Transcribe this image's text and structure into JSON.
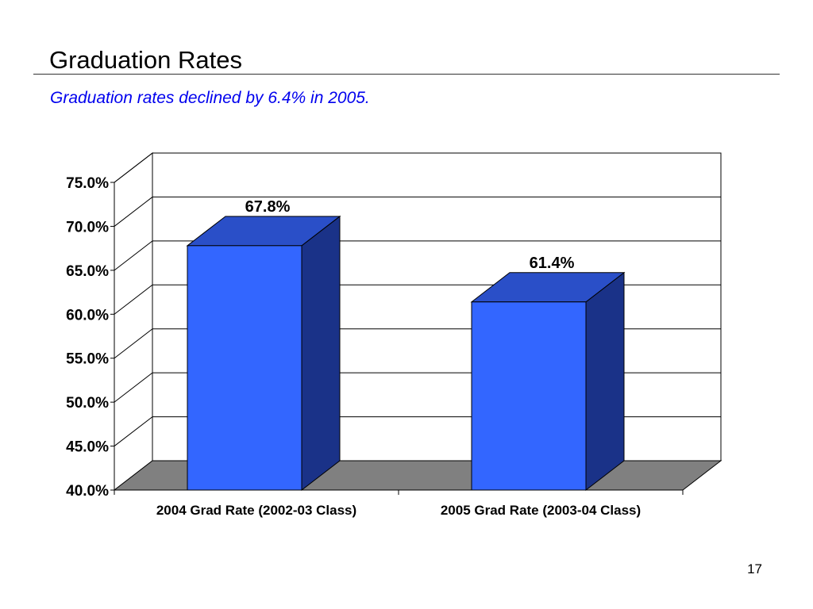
{
  "slide": {
    "title": "Graduation Rates",
    "subtitle": "Graduation rates declined by 6.4% in 2005.",
    "page_number": "17"
  },
  "chart_data": {
    "type": "bar",
    "style": "3d",
    "categories": [
      "2004 Grad Rate (2002-03 Class)",
      "2005 Grad Rate (2003-04 Class)"
    ],
    "values": [
      67.8,
      61.4
    ],
    "data_labels": [
      "67.8%",
      "61.4%"
    ],
    "ylim": [
      40,
      75
    ],
    "y_ticks": [
      40,
      45,
      50,
      55,
      60,
      65,
      70,
      75
    ],
    "y_tick_labels": [
      "40.0%",
      "45.0%",
      "50.0%",
      "55.0%",
      "60.0%",
      "65.0%",
      "70.0%",
      "75.0%"
    ],
    "grid": true,
    "legend": "none",
    "colors": {
      "bar_front": "#3366ff",
      "bar_top": "#2a4fc8",
      "bar_side": "#1a3288",
      "floor": "#808080",
      "grid": "#000000"
    }
  }
}
